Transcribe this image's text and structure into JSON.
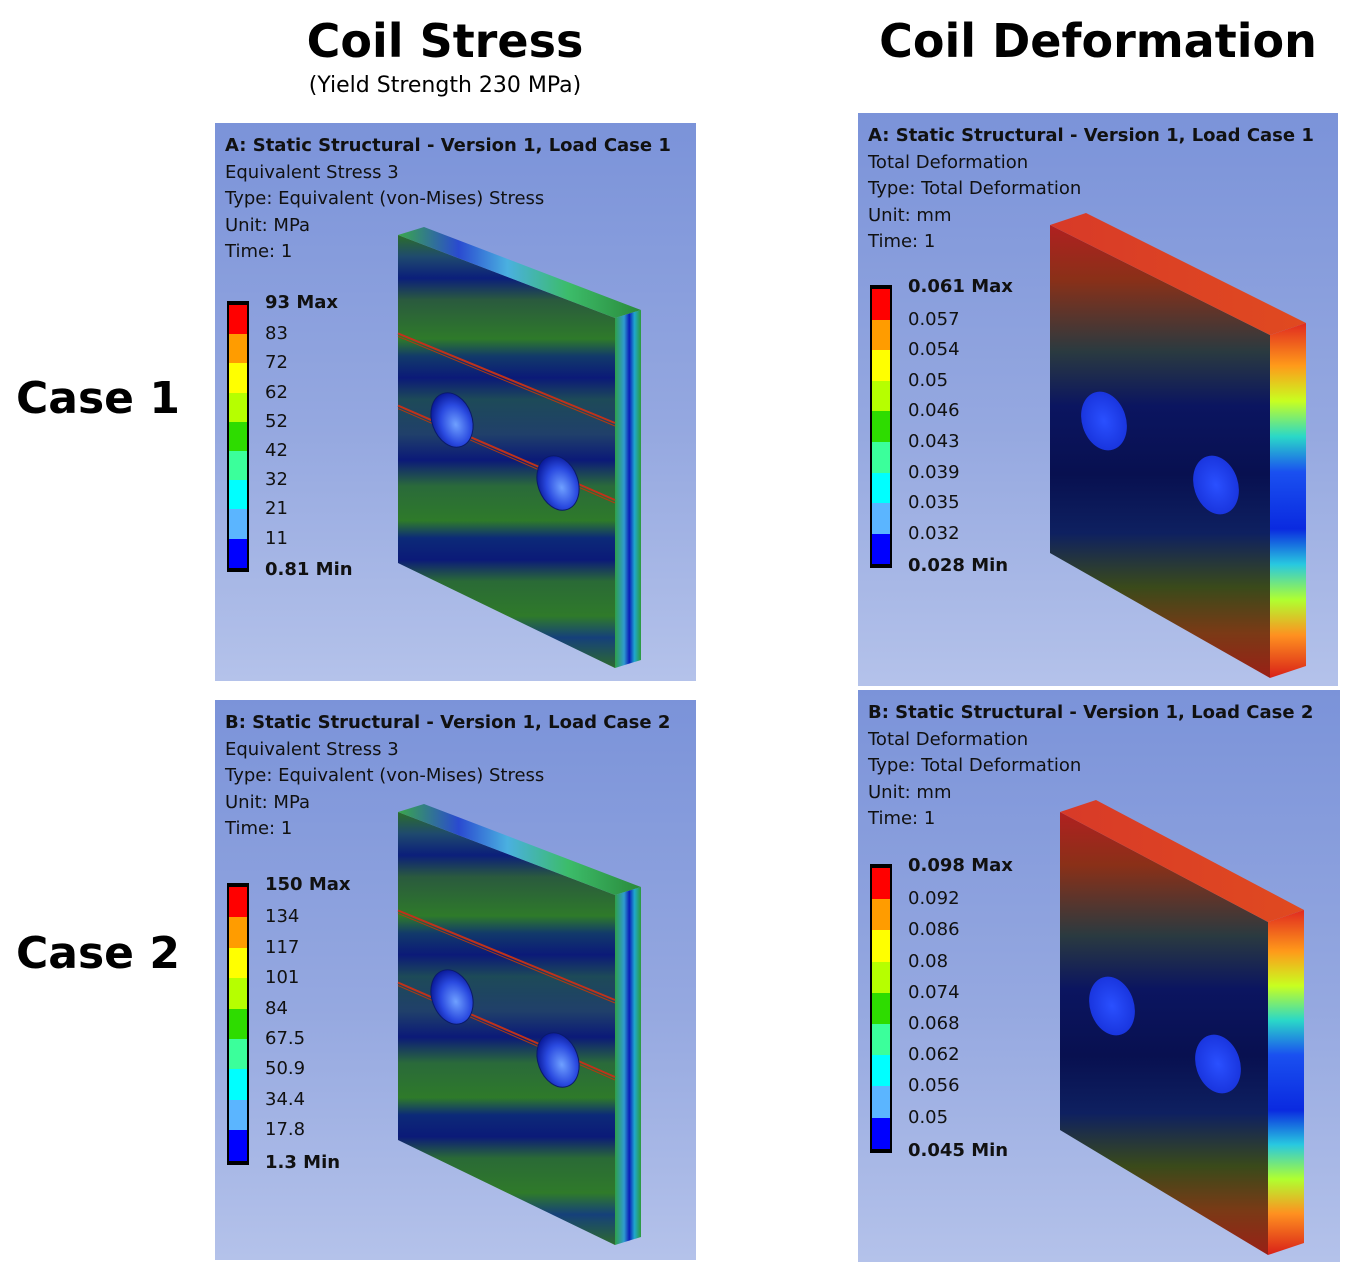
{
  "columns": {
    "stress_title": "Coil Stress",
    "stress_subtitle": "(Yield Strength 230 MPa)",
    "deformation_title": "Coil Deformation"
  },
  "rows": {
    "case1_label": "Case 1",
    "case2_label": "Case 2"
  },
  "legend_colors": [
    "#ff0000",
    "#ff9c00",
    "#ffff00",
    "#b6ff00",
    "#2edc00",
    "#3bff9b",
    "#00ffff",
    "#5bb5ff",
    "#0000ff"
  ],
  "panels": {
    "stress1": {
      "lines": [
        "A: Static Structural - Version 1, Load Case 1",
        "Equivalent Stress 3",
        "Type: Equivalent (von-Mises) Stress",
        "Unit: MPa",
        "Time: 1"
      ],
      "max": "93 Max",
      "labels": [
        "83",
        "72",
        "62",
        "52",
        "42",
        "32",
        "21",
        "11"
      ],
      "min": "0.81 Min"
    },
    "stress2": {
      "lines": [
        "B: Static Structural - Version 1, Load Case 2",
        "Equivalent Stress 3",
        "Type: Equivalent (von-Mises) Stress",
        "Unit: MPa",
        "Time: 1"
      ],
      "max": "150 Max",
      "labels": [
        "134",
        "117",
        "101",
        "84",
        "67.5",
        "50.9",
        "34.4",
        "17.8"
      ],
      "min": "1.3 Min"
    },
    "def1": {
      "lines": [
        "A: Static Structural - Version 1, Load Case 1",
        "Total Deformation",
        "Type: Total Deformation",
        "Unit: mm",
        "Time: 1"
      ],
      "max": "0.061 Max",
      "labels": [
        "0.057",
        "0.054",
        "0.05",
        "0.046",
        "0.043",
        "0.039",
        "0.035",
        "0.032"
      ],
      "min": "0.028 Min"
    },
    "def2": {
      "lines": [
        "B: Static Structural - Version 1, Load Case 2",
        "Total Deformation",
        "Type: Total Deformation",
        "Unit: mm",
        "Time: 1"
      ],
      "max": "0.098 Max",
      "labels": [
        "0.092",
        "0.086",
        "0.08",
        "0.074",
        "0.068",
        "0.062",
        "0.056",
        "0.05"
      ],
      "min": "0.045 Min"
    }
  }
}
